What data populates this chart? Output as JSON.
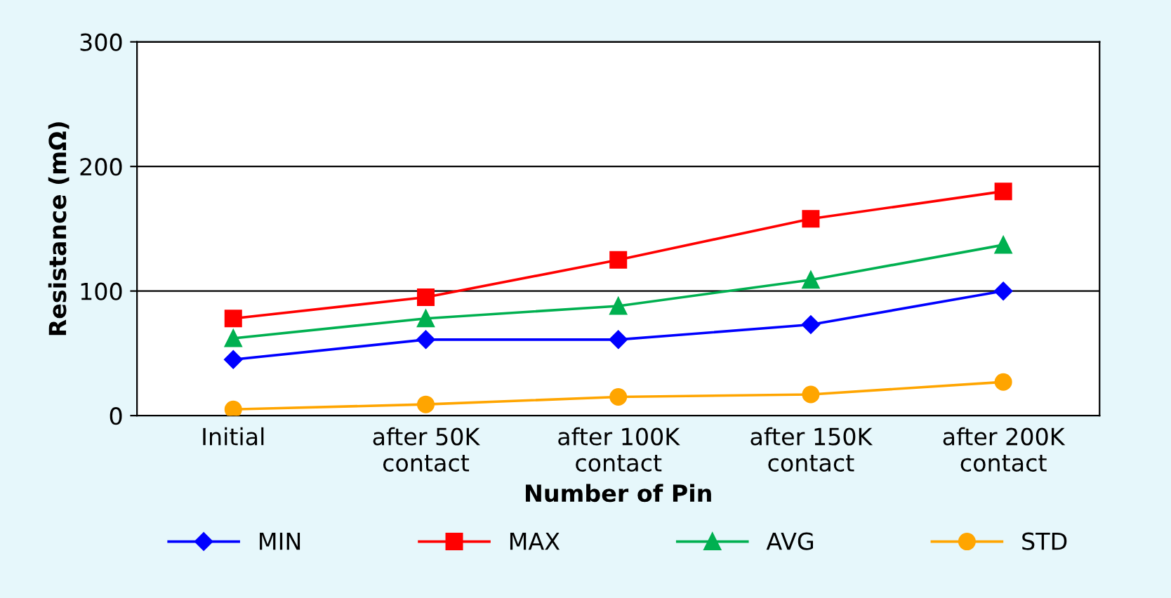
{
  "chart_data": {
    "type": "line",
    "xlabel": "Number of Pin",
    "ylabel": "Resistance (mΩ)",
    "categories": [
      "Initial",
      "after 50K\ncontact",
      "after 100K\ncontact",
      "after 150K\ncontact",
      "after 200K\ncontact"
    ],
    "series": [
      {
        "name": "MIN",
        "color": "#0000ff",
        "marker": "diamond",
        "values": [
          45,
          61,
          61,
          73,
          100
        ]
      },
      {
        "name": "MAX",
        "color": "#ff0000",
        "marker": "square",
        "values": [
          78,
          95,
          125,
          158,
          180
        ]
      },
      {
        "name": "AVG",
        "color": "#00b050",
        "marker": "triangle",
        "values": [
          62,
          78,
          88,
          109,
          137
        ]
      },
      {
        "name": "STD",
        "color": "#ffa500",
        "marker": "circle",
        "values": [
          5,
          9,
          15,
          17,
          27
        ]
      }
    ],
    "ylim": [
      0,
      300
    ],
    "yticks": [
      0,
      100,
      200,
      300
    ],
    "grid": "y",
    "legend": "bottom",
    "line_style": "solid"
  }
}
